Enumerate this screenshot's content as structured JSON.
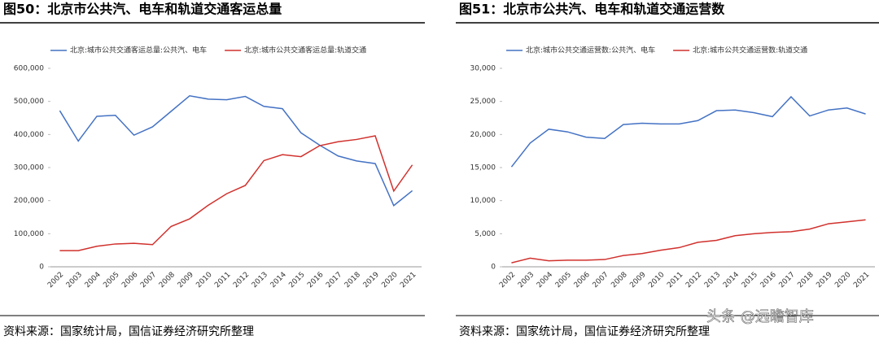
{
  "chart_data": [
    {
      "type": "line",
      "title": "图50：北京市公共汽、电车和轨道交通客运总量",
      "categories": [
        "2002",
        "2003",
        "2004",
        "2005",
        "2006",
        "2007",
        "2008",
        "2009",
        "2010",
        "2011",
        "2012",
        "2013",
        "2014",
        "2015",
        "2016",
        "2017",
        "2018",
        "2019",
        "2020",
        "2021"
      ],
      "series": [
        {
          "name": "北京:城市公共交通客运总量:公共汽、电车",
          "color": "#4472c4",
          "values": [
            472000,
            380000,
            455000,
            458000,
            398000,
            423000,
            470000,
            517000,
            507000,
            505000,
            515000,
            485000,
            478000,
            405000,
            368000,
            335000,
            320000,
            312000,
            185000,
            230000
          ]
        },
        {
          "name": "北京:城市公共交通客运总量:轨道交通",
          "color": "#d0312d",
          "values": [
            49000,
            49000,
            62000,
            69000,
            71000,
            67000,
            122000,
            145000,
            186000,
            221000,
            246000,
            321000,
            339000,
            333000,
            366000,
            378000,
            385000,
            396000,
            229000,
            308000
          ]
        }
      ],
      "ylim": [
        0,
        600000
      ],
      "yticks": [
        0,
        {
          "value": 100000,
          "label": "100,000"
        },
        {
          "value": 200000,
          "label": "200,000"
        },
        {
          "value": 300000,
          "label": "300,000"
        },
        {
          "value": 400000,
          "label": "400,000"
        },
        {
          "value": 500000,
          "label": "500,000"
        },
        {
          "value": 600000,
          "label": "600,000"
        }
      ],
      "source": "资料来源：国家统计局，国信证券经济研究所整理"
    },
    {
      "type": "line",
      "title": "图51：北京市公共汽、电车和轨道交通运营数",
      "categories": [
        "2002",
        "2003",
        "2004",
        "2005",
        "2006",
        "2007",
        "2008",
        "2009",
        "2010",
        "2011",
        "2012",
        "2013",
        "2014",
        "2015",
        "2016",
        "2017",
        "2018",
        "2019",
        "2020",
        "2021"
      ],
      "series": [
        {
          "name": "北京:城市公共交通运营数:公共汽、电车",
          "color": "#4472c4",
          "values": [
            15100,
            18700,
            20800,
            20400,
            19600,
            19400,
            21500,
            21700,
            21600,
            21600,
            22100,
            23600,
            23700,
            23300,
            22700,
            25700,
            22800,
            23700,
            24000,
            23100
          ]
        },
        {
          "name": "北京:城市公共交通运营数:轨道交通",
          "color": "#d0312d",
          "values": [
            600,
            1300,
            900,
            1000,
            1000,
            1100,
            1700,
            2000,
            2500,
            2900,
            3700,
            4000,
            4700,
            5000,
            5200,
            5300,
            5700,
            6500,
            6800,
            7100
          ]
        }
      ],
      "ylim": [
        0,
        30000
      ],
      "yticks": [
        0,
        {
          "value": 5000,
          "label": "5,000"
        },
        {
          "value": 10000,
          "label": "10,000"
        },
        {
          "value": 15000,
          "label": "15,000"
        },
        {
          "value": 20000,
          "label": "20,000"
        },
        {
          "value": 25000,
          "label": "25,000"
        },
        {
          "value": 30000,
          "label": "30,000"
        }
      ],
      "source": "资料来源：国家统计局，国信证券经济研究所整理"
    }
  ],
  "watermark": "头条 @远瞻智库"
}
